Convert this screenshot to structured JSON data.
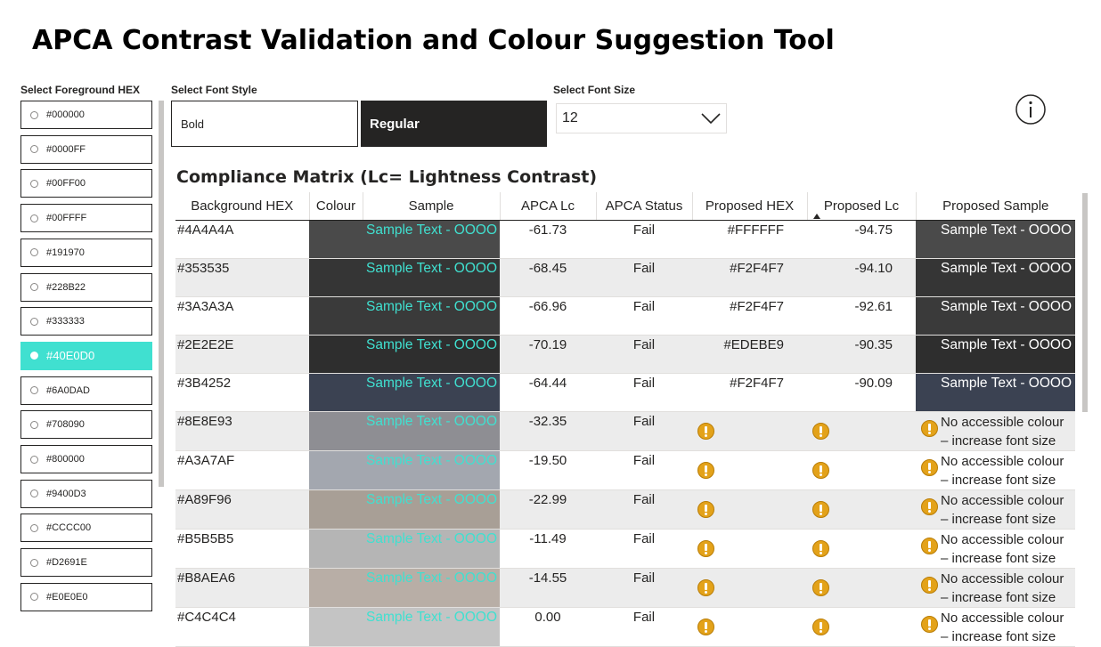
{
  "title": "APCA Contrast Validation and Colour Suggestion Tool",
  "foreground": {
    "label": "Select Foreground HEX",
    "items": [
      "#000000",
      "#0000FF",
      "#00FF00",
      "#00FFFF",
      "#191970",
      "#228B22",
      "#333333",
      "#40E0D0",
      "#6A0DAD",
      "#708090",
      "#800000",
      "#9400D3",
      "#CCCC00",
      "#D2691E",
      "#E0E0E0"
    ],
    "selected": "#40E0D0"
  },
  "font_style": {
    "label": "Select Font Style",
    "options": [
      "Bold",
      "Regular"
    ],
    "selected": "Regular"
  },
  "font_size": {
    "label": "Select Font Size",
    "value": "12"
  },
  "icons": {
    "info": "info-icon",
    "dropdown": "chevron-down-icon",
    "warning": "warning-icon",
    "sort": "sort-ascending-icon"
  },
  "matrix": {
    "title": "Compliance Matrix (Lc= Lightness Contrast)",
    "columns": [
      "Background HEX",
      "Colour",
      "Sample",
      "APCA Lc",
      "APCA Status",
      "Proposed HEX",
      "Proposed Lc",
      "Proposed Sample"
    ],
    "rows": [
      {
        "hex": "#4A4A4A",
        "sample": "Sample Text - OOOO",
        "lc": "-61.73",
        "status": "Fail",
        "proposed_hex": "#FFFFFF",
        "proposed_lc": "-94.75",
        "proposed_sample": "Sample Text - OOOO"
      },
      {
        "hex": "#353535",
        "sample": "Sample Text - OOOO",
        "lc": "-68.45",
        "status": "Fail",
        "proposed_hex": "#F2F4F7",
        "proposed_lc": "-94.10",
        "proposed_sample": "Sample Text - OOOO"
      },
      {
        "hex": "#3A3A3A",
        "sample": "Sample Text - OOOO",
        "lc": "-66.96",
        "status": "Fail",
        "proposed_hex": "#F2F4F7",
        "proposed_lc": "-92.61",
        "proposed_sample": "Sample Text - OOOO"
      },
      {
        "hex": "#2E2E2E",
        "sample": "Sample Text - OOOO",
        "lc": "-70.19",
        "status": "Fail",
        "proposed_hex": "#EDEBE9",
        "proposed_lc": "-90.35",
        "proposed_sample": "Sample Text - OOOO"
      },
      {
        "hex": "#3B4252",
        "sample": "Sample Text - OOOO",
        "lc": "-64.44",
        "status": "Fail",
        "proposed_hex": "#F2F4F7",
        "proposed_lc": "-90.09",
        "proposed_sample": "Sample Text - OOOO"
      },
      {
        "hex": "#8E8E93",
        "sample": "Sample Text - OOOO",
        "lc": "-32.35",
        "status": "Fail",
        "proposed_hex": null,
        "proposed_lc": null,
        "proposed_sample": "No accessible colour – increase font size"
      },
      {
        "hex": "#A3A7AF",
        "sample": "Sample Text - OOOO",
        "lc": "-19.50",
        "status": "Fail",
        "proposed_hex": null,
        "proposed_lc": null,
        "proposed_sample": "No accessible colour – increase font size"
      },
      {
        "hex": "#A89F96",
        "sample": "Sample Text - OOOO",
        "lc": "-22.99",
        "status": "Fail",
        "proposed_hex": null,
        "proposed_lc": null,
        "proposed_sample": "No accessible colour – increase font size"
      },
      {
        "hex": "#B5B5B5",
        "sample": "Sample Text - OOOO",
        "lc": "-11.49",
        "status": "Fail",
        "proposed_hex": null,
        "proposed_lc": null,
        "proposed_sample": "No accessible colour – increase font size"
      },
      {
        "hex": "#B8AEA6",
        "sample": "Sample Text - OOOO",
        "lc": "-14.55",
        "status": "Fail",
        "proposed_hex": null,
        "proposed_lc": null,
        "proposed_sample": "No accessible colour – increase font size"
      },
      {
        "hex": "#C4C4C4",
        "sample": "Sample Text - OOOO",
        "lc": "0.00",
        "status": "Fail",
        "proposed_hex": null,
        "proposed_lc": null,
        "proposed_sample": "No accessible colour – increase font size"
      }
    ]
  },
  "colors": {
    "accent": "#40E0D0",
    "dark": "#252423",
    "warning": "#E3A21A"
  }
}
